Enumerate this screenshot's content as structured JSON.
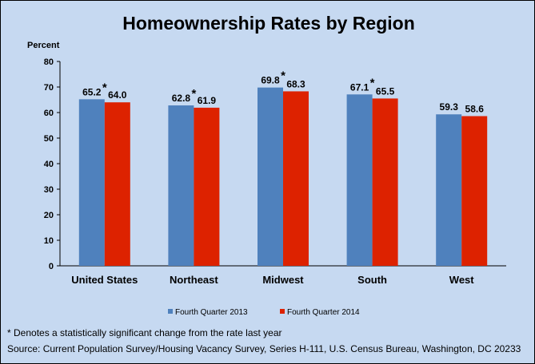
{
  "chart_data": {
    "type": "bar",
    "title": "Homeownership Rates by Region",
    "ylabel": "Percent",
    "xlabel": "",
    "ylim": [
      0,
      80
    ],
    "yticks": [
      0,
      10,
      20,
      30,
      40,
      50,
      60,
      70,
      80
    ],
    "categories": [
      "United States",
      "Northeast",
      "Midwest",
      "South",
      "West"
    ],
    "series": [
      {
        "name": "Fourth Quarter 2013",
        "color": "#4f81bd",
        "values": [
          65.2,
          62.8,
          69.8,
          67.1,
          59.3
        ]
      },
      {
        "name": "Fourth Quarter 2014",
        "color": "#dd2200",
        "values": [
          64.0,
          61.9,
          68.3,
          65.5,
          58.6
        ]
      }
    ],
    "significant_marker": "*",
    "significant": [
      true,
      true,
      true,
      true,
      false
    ],
    "grid": false,
    "legend_position": "bottom",
    "background_color": "#c6d9f1"
  },
  "footnote": "* Denotes a statistically significant change from the rate last year",
  "source": "Source: Current Population Survey/Housing Vacancy Survey,  Series H-111, U.S. Census Bureau, Washington, DC 20233"
}
